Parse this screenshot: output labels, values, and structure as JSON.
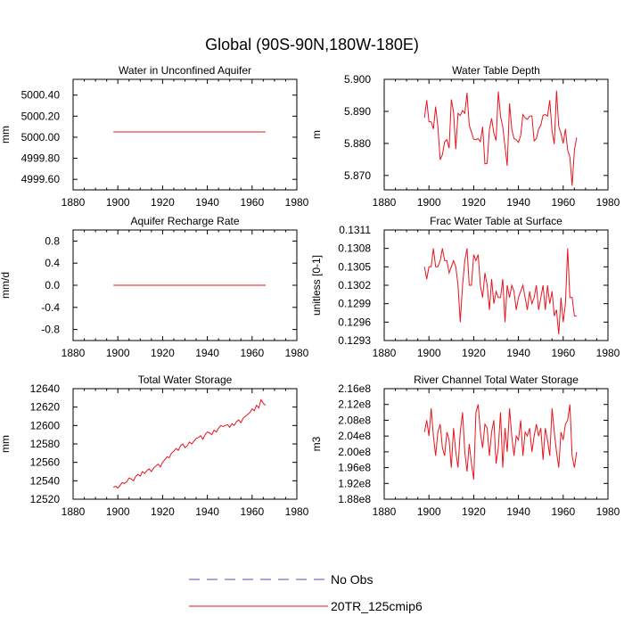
{
  "figure": {
    "title": "Global (90S-90N,180W-180E)"
  },
  "legend": {
    "placement": "bottom-center",
    "entries": [
      {
        "label": "No Obs",
        "color": "#4b4bbf",
        "style": "dashed"
      },
      {
        "label": "20TR_125cmip6",
        "color": "#e8141e",
        "style": "solid"
      }
    ]
  },
  "chart_data": [
    {
      "type": "line",
      "title": "Water in Unconfined Aquifer",
      "ylabel": "mm",
      "xlabel": "",
      "xlim": [
        1880,
        1980
      ],
      "ylim": [
        4999.5,
        5000.55
      ],
      "xticks": [
        1880,
        1900,
        1920,
        1940,
        1960,
        1980
      ],
      "xtick_labels": [
        "1880",
        "1900",
        "1920",
        "1940",
        "1960",
        "1980"
      ],
      "yticks": [
        4999.6,
        4999.8,
        5000.0,
        5000.2,
        5000.4
      ],
      "ytick_labels": [
        "4999.60",
        "4999.80",
        "5000.00",
        "5000.20",
        "5000.40"
      ],
      "series": [
        {
          "name": "20TR_125cmip6",
          "x": [
            1898,
            1966
          ],
          "values": [
            5000.05,
            5000.05
          ]
        }
      ]
    },
    {
      "type": "line",
      "title": "Water Table Depth",
      "ylabel": "m",
      "xlabel": "",
      "xlim": [
        1880,
        1980
      ],
      "ylim": [
        5.8655,
        5.9
      ],
      "xticks": [
        1880,
        1900,
        1920,
        1940,
        1960,
        1980
      ],
      "xtick_labels": [
        "1880",
        "1900",
        "1920",
        "1940",
        "1960",
        "1980"
      ],
      "yticks": [
        5.87,
        5.88,
        5.89,
        5.9
      ],
      "ytick_labels": [
        "5.870",
        "5.880",
        "5.890",
        "5.900"
      ],
      "series": [
        {
          "name": "20TR_125cmip6",
          "x": [
            1898,
            1899,
            1900,
            1901,
            1902,
            1903,
            1904,
            1905,
            1906,
            1907,
            1908,
            1909,
            1910,
            1911,
            1912,
            1913,
            1914,
            1915,
            1916,
            1917,
            1918,
            1919,
            1920,
            1921,
            1922,
            1923,
            1924,
            1925,
            1926,
            1927,
            1928,
            1929,
            1930,
            1931,
            1932,
            1933,
            1934,
            1935,
            1936,
            1937,
            1938,
            1939,
            1940,
            1941,
            1942,
            1943,
            1944,
            1945,
            1946,
            1947,
            1948,
            1949,
            1950,
            1951,
            1952,
            1953,
            1954,
            1955,
            1956,
            1957,
            1958,
            1959,
            1960,
            1961,
            1962,
            1963,
            1964,
            1965,
            1966
          ],
          "values": [
            5.888,
            5.8935,
            5.8868,
            5.8867,
            5.8845,
            5.8915,
            5.8852,
            5.8749,
            5.8765,
            5.8805,
            5.8812,
            5.8785,
            5.8937,
            5.8897,
            5.8782,
            5.8894,
            5.8887,
            5.8903,
            5.8894,
            5.8958,
            5.8857,
            5.8835,
            5.8813,
            5.8812,
            5.8815,
            5.8805,
            5.8852,
            5.8736,
            5.8738,
            5.8843,
            5.8878,
            5.8832,
            5.8809,
            5.8962,
            5.8885,
            5.8852,
            5.879,
            5.873,
            5.8925,
            5.8845,
            5.8815,
            5.8812,
            5.8803,
            5.8825,
            5.889,
            5.888,
            5.8875,
            5.8885,
            5.8886,
            5.8808,
            5.8815,
            5.8845,
            5.8857,
            5.8888,
            5.889,
            5.8885,
            5.8935,
            5.8838,
            5.8798,
            5.8965,
            5.8853,
            5.8831,
            5.88,
            5.8845,
            5.8779,
            5.8757,
            5.8668,
            5.878,
            5.8818
          ]
        }
      ]
    },
    {
      "type": "line",
      "title": "Aquifer Recharge Rate",
      "ylabel": "mm/d",
      "xlabel": "",
      "xlim": [
        1880,
        1980
      ],
      "ylim": [
        -1.0,
        1.0
      ],
      "xticks": [
        1880,
        1900,
        1920,
        1940,
        1960,
        1980
      ],
      "xtick_labels": [
        "1880",
        "1900",
        "1920",
        "1940",
        "1960",
        "1980"
      ],
      "yticks": [
        -0.8,
        -0.4,
        0.0,
        0.4,
        0.8
      ],
      "ytick_labels": [
        "-0.8",
        "-0.4",
        "0.0",
        "0.4",
        "0.8"
      ],
      "series": [
        {
          "name": "20TR_125cmip6",
          "x": [
            1898,
            1966
          ],
          "values": [
            0.0,
            0.0
          ]
        }
      ]
    },
    {
      "type": "line",
      "title": "Frac Water Table at Surface",
      "ylabel": "unitless [0-1]",
      "xlabel": "",
      "xlim": [
        1880,
        1980
      ],
      "ylim": [
        0.1293,
        0.1311
      ],
      "xticks": [
        1880,
        1900,
        1920,
        1940,
        1960,
        1980
      ],
      "xtick_labels": [
        "1880",
        "1900",
        "1920",
        "1940",
        "1960",
        "1980"
      ],
      "yticks": [
        0.1293,
        0.1296,
        0.1299,
        0.1302,
        0.1305,
        0.1308,
        0.1311
      ],
      "ytick_labels": [
        "0.1293",
        "0.1296",
        "0.1299",
        "0.1302",
        "0.1305",
        "0.1308",
        "0.1311"
      ],
      "series": [
        {
          "name": "20TR_125cmip6",
          "x": [
            1898,
            1899,
            1900,
            1901,
            1902,
            1903,
            1904,
            1905,
            1906,
            1907,
            1908,
            1909,
            1910,
            1911,
            1912,
            1913,
            1914,
            1915,
            1916,
            1917,
            1918,
            1919,
            1920,
            1921,
            1922,
            1923,
            1924,
            1925,
            1926,
            1927,
            1928,
            1929,
            1930,
            1931,
            1932,
            1933,
            1934,
            1935,
            1936,
            1937,
            1938,
            1939,
            1940,
            1941,
            1942,
            1943,
            1944,
            1945,
            1946,
            1947,
            1948,
            1949,
            1950,
            1951,
            1952,
            1953,
            1954,
            1955,
            1956,
            1957,
            1958,
            1959,
            1960,
            1961,
            1962,
            1963,
            1964,
            1965,
            1966
          ],
          "values": [
            0.1305,
            0.1303,
            0.1305,
            0.1305,
            0.1308,
            0.1305,
            0.1305,
            0.1306,
            0.1308,
            0.1306,
            0.1306,
            0.1304,
            0.1305,
            0.1306,
            0.1305,
            0.1302,
            0.1296,
            0.1302,
            0.1306,
            0.1308,
            0.1302,
            0.1302,
            0.1307,
            0.1306,
            0.1307,
            0.1302,
            0.13,
            0.1304,
            0.1302,
            0.1298,
            0.1303,
            0.1299,
            0.1301,
            0.13,
            0.13,
            0.1303,
            0.1296,
            0.1302,
            0.13,
            0.1302,
            0.1301,
            0.1298,
            0.13,
            0.1301,
            0.1302,
            0.13,
            0.1298,
            0.1301,
            0.1299,
            0.13,
            0.1302,
            0.1298,
            0.13,
            0.1302,
            0.1298,
            0.1302,
            0.1299,
            0.1301,
            0.1297,
            0.1298,
            0.1294,
            0.13,
            0.1296,
            0.1299,
            0.1308,
            0.13,
            0.13,
            0.1297,
            0.1297
          ]
        }
      ]
    },
    {
      "type": "line",
      "title": "Total Water Storage",
      "ylabel": "mm",
      "xlabel": "",
      "xlim": [
        1880,
        1980
      ],
      "ylim": [
        12520,
        12640
      ],
      "xticks": [
        1880,
        1900,
        1920,
        1940,
        1960,
        1980
      ],
      "xtick_labels": [
        "1880",
        "1900",
        "1920",
        "1940",
        "1960",
        "1980"
      ],
      "yticks": [
        12520,
        12540,
        12560,
        12580,
        12600,
        12620,
        12640
      ],
      "ytick_labels": [
        "12520",
        "12540",
        "12560",
        "12580",
        "12600",
        "12620",
        "12640"
      ],
      "series": [
        {
          "name": "20TR_125cmip6",
          "x": [
            1898,
            1899,
            1900,
            1901,
            1902,
            1903,
            1904,
            1905,
            1906,
            1907,
            1908,
            1909,
            1910,
            1911,
            1912,
            1913,
            1914,
            1915,
            1916,
            1917,
            1918,
            1919,
            1920,
            1921,
            1922,
            1923,
            1924,
            1925,
            1926,
            1927,
            1928,
            1929,
            1930,
            1931,
            1932,
            1933,
            1934,
            1935,
            1936,
            1937,
            1938,
            1939,
            1940,
            1941,
            1942,
            1943,
            1944,
            1945,
            1946,
            1947,
            1948,
            1949,
            1950,
            1951,
            1952,
            1953,
            1954,
            1955,
            1956,
            1957,
            1958,
            1959,
            1960,
            1961,
            1962,
            1963,
            1964,
            1965,
            1966
          ],
          "values": [
            12533,
            12534,
            12532,
            12535,
            12538,
            12537,
            12539,
            12543,
            12542,
            12540,
            12545,
            12547,
            12545,
            12550,
            12548,
            12551,
            12553,
            12550,
            12554,
            12556,
            12558,
            12555,
            12560,
            12563,
            12566,
            12565,
            12570,
            12572,
            12575,
            12573,
            12578,
            12580,
            12576,
            12578,
            12582,
            12580,
            12583,
            12586,
            12587,
            12589,
            12585,
            12590,
            12593,
            12592,
            12590,
            12595,
            12593,
            12597,
            12600,
            12599,
            12600,
            12601,
            12598,
            12602,
            12600,
            12604,
            12606,
            12603,
            12608,
            12610,
            12612,
            12614,
            12618,
            12616,
            12622,
            12619,
            12628,
            12624,
            12622
          ]
        }
      ]
    },
    {
      "type": "line",
      "title": "River Channel Total Water Storage",
      "ylabel": "m3",
      "xlabel": "",
      "xlim": [
        1880,
        1980
      ],
      "ylim": [
        188000000,
        216000000
      ],
      "xticks": [
        1880,
        1900,
        1920,
        1940,
        1960,
        1980
      ],
      "xtick_labels": [
        "1880",
        "1900",
        "1920",
        "1940",
        "1960",
        "1980"
      ],
      "yticks": [
        188000000,
        192000000,
        196000000,
        200000000,
        204000000,
        208000000,
        212000000,
        216000000
      ],
      "ytick_labels": [
        "1.88e8",
        "1.92e8",
        "1.96e8",
        "2.00e8",
        "2.04e8",
        "2.08e8",
        "2.12e8",
        "2.16e8"
      ],
      "series": [
        {
          "name": "20TR_125cmip6",
          "x": [
            1898,
            1899,
            1900,
            1901,
            1902,
            1903,
            1904,
            1905,
            1906,
            1907,
            1908,
            1909,
            1910,
            1911,
            1912,
            1913,
            1914,
            1915,
            1916,
            1917,
            1918,
            1919,
            1920,
            1921,
            1922,
            1923,
            1924,
            1925,
            1926,
            1927,
            1928,
            1929,
            1930,
            1931,
            1932,
            1933,
            1934,
            1935,
            1936,
            1937,
            1938,
            1939,
            1940,
            1941,
            1942,
            1943,
            1944,
            1945,
            1946,
            1947,
            1948,
            1949,
            1950,
            1951,
            1952,
            1953,
            1954,
            1955,
            1956,
            1957,
            1958,
            1959,
            1960,
            1961,
            1962,
            1963,
            1964,
            1965,
            1966
          ],
          "values": [
            205000000,
            208000000,
            204000000,
            211000000,
            204000000,
            199000000,
            205000000,
            207000000,
            201000000,
            199000000,
            205000000,
            203000000,
            196000000,
            206000000,
            200000000,
            196000000,
            205000000,
            210000000,
            200000000,
            195000000,
            202000000,
            197000000,
            193000000,
            210000000,
            212000000,
            205000000,
            201000000,
            207000000,
            206000000,
            199000000,
            205000000,
            208000000,
            197000000,
            201000000,
            210000000,
            196000000,
            206000000,
            200000000,
            211000000,
            204000000,
            199000000,
            204000000,
            203000000,
            208000000,
            199000000,
            205000000,
            204000000,
            206000000,
            200000000,
            204000000,
            207000000,
            204000000,
            206000000,
            198000000,
            206000000,
            203000000,
            199000000,
            211000000,
            205000000,
            200000000,
            196000000,
            205000000,
            203000000,
            207000000,
            208000000,
            212000000,
            199000000,
            196000000,
            200000000
          ]
        }
      ]
    }
  ]
}
